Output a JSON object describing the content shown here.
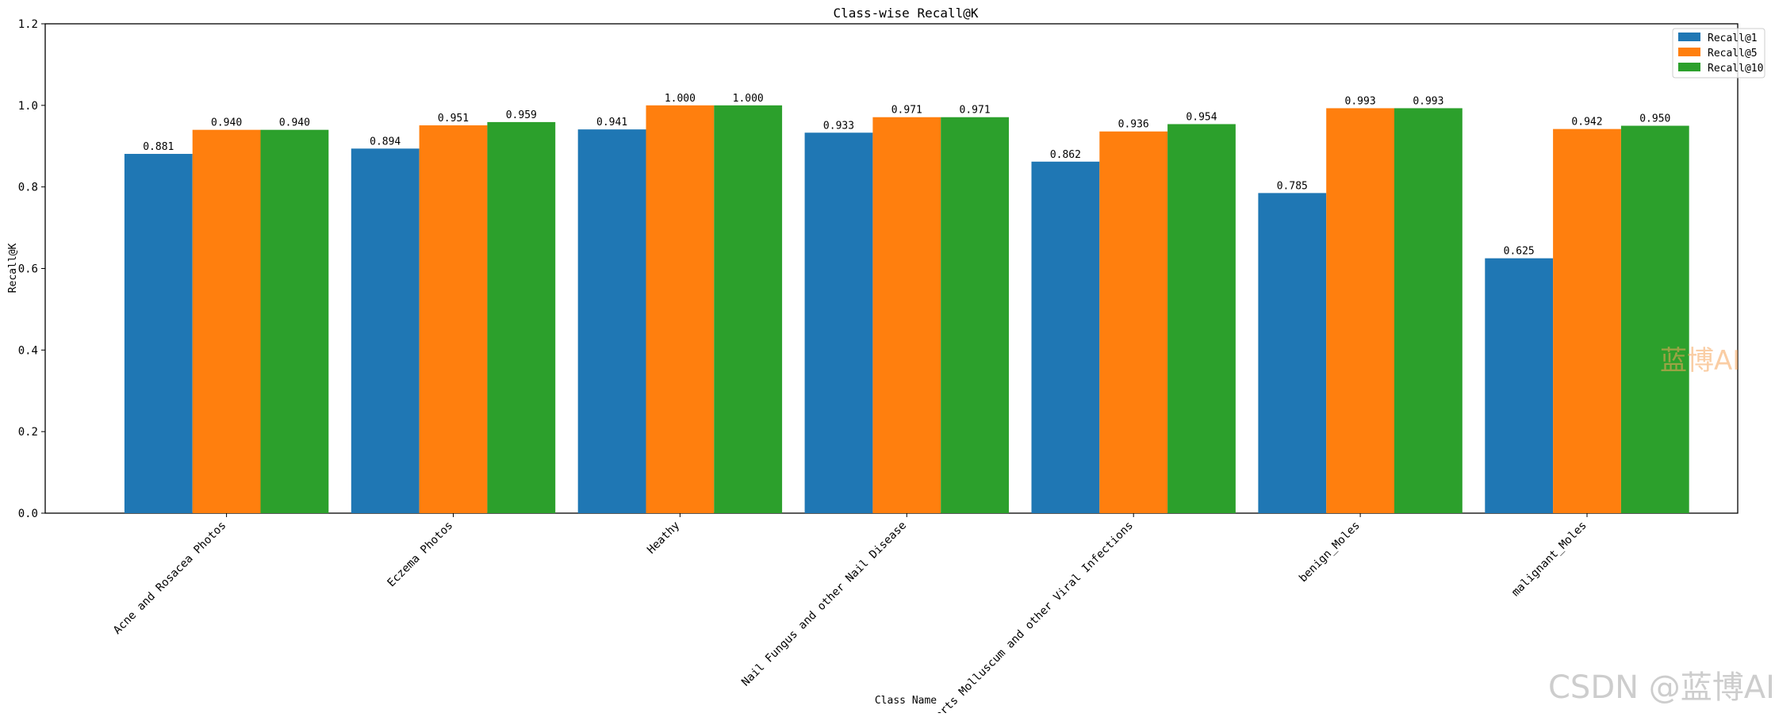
{
  "chart_data": {
    "type": "bar",
    "title": "Class-wise Recall@K",
    "xlabel": "Class Name",
    "ylabel": "Recall@K",
    "ylim": [
      0,
      1.2
    ],
    "yticks": [
      "0.0",
      "0.2",
      "0.4",
      "0.6",
      "0.8",
      "1.0",
      "1.2"
    ],
    "categories": [
      "Acne and Rosacea Photos",
      "Eczema Photos",
      "Heathy",
      "Nail Fungus and other Nail Disease",
      "Warts Molluscum and other Viral Infections",
      "benign_Moles",
      "malignant_Moles"
    ],
    "series": [
      {
        "name": "Recall@1",
        "color": "#1f77b4",
        "values": [
          0.881,
          0.894,
          0.941,
          0.933,
          0.862,
          0.785,
          0.625
        ],
        "labels": [
          "0.881",
          "0.894",
          "0.941",
          "0.933",
          "0.862",
          "0.785",
          "0.625"
        ]
      },
      {
        "name": "Recall@5",
        "color": "#ff7f0e",
        "values": [
          0.94,
          0.951,
          1.0,
          0.971,
          0.936,
          0.993,
          0.942
        ],
        "labels": [
          "0.940",
          "0.951",
          "1.000",
          "0.971",
          "0.936",
          "0.993",
          "0.942"
        ]
      },
      {
        "name": "Recall@10",
        "color": "#2ca02c",
        "values": [
          0.94,
          0.959,
          1.0,
          0.971,
          0.954,
          0.993,
          0.95
        ],
        "labels": [
          "0.940",
          "0.959",
          "1.000",
          "0.971",
          "0.954",
          "0.993",
          "0.950"
        ]
      }
    ],
    "grid": false,
    "legend_position": "top-right"
  },
  "watermarks": [
    "蓝博AI",
    "CSDN @蓝博AI"
  ]
}
